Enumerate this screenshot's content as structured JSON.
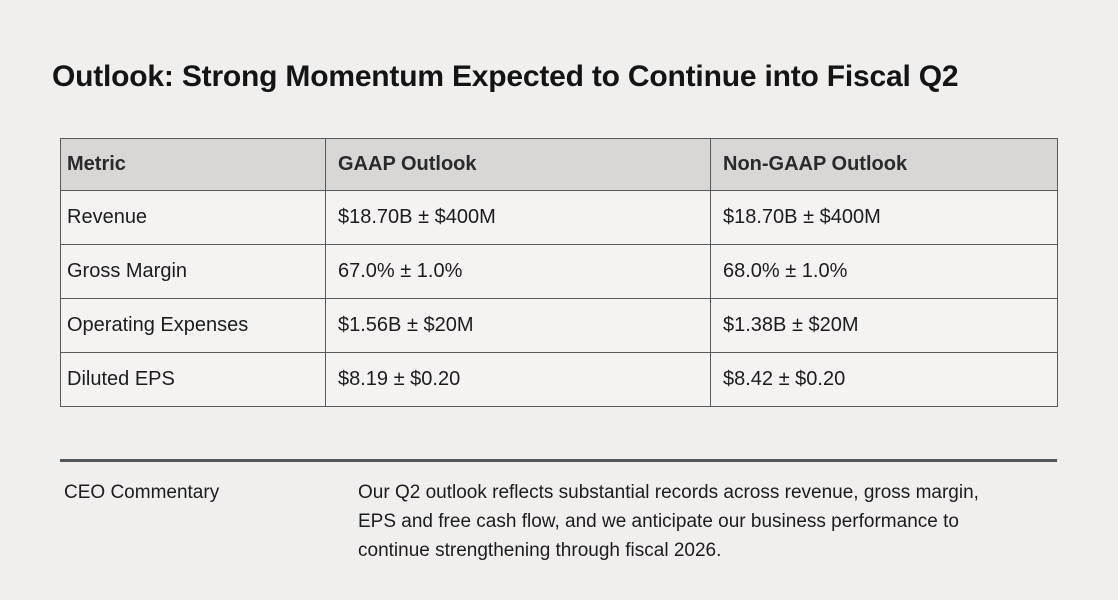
{
  "title": "Outlook: Strong Momentum Expected to Continue into Fiscal Q2",
  "table": {
    "columns": [
      "Metric",
      "GAAP Outlook",
      "Non-GAAP Outlook"
    ],
    "rows": [
      {
        "metric": "Revenue",
        "gaap": "$18.70B ± $400M",
        "non_gaap": "$18.70B ± $400M"
      },
      {
        "metric": "Gross Margin",
        "gaap": "67.0% ± 1.0%",
        "non_gaap": "68.0% ± 1.0%"
      },
      {
        "metric": "Operating Expenses",
        "gaap": "$1.56B ± $20M",
        "non_gaap": "$1.38B ± $20M"
      },
      {
        "metric": "Diluted EPS",
        "gaap": "$8.19 ± $0.20",
        "non_gaap": "$8.42 ± $0.20"
      }
    ]
  },
  "commentary": {
    "label": "CEO Commentary",
    "text": "Our Q2 outlook reflects substantial records across revenue, gross margin, EPS and free cash flow, and we anticipate our business performance to continue strengthening through fiscal 2026."
  },
  "colors": {
    "page_background": "#f1efee",
    "table_header_background": "#d8d7d5",
    "table_cell_background": "#f5f3f2",
    "table_border": "#58595b",
    "divider": "#53575c",
    "text": "#1c1c1e"
  }
}
